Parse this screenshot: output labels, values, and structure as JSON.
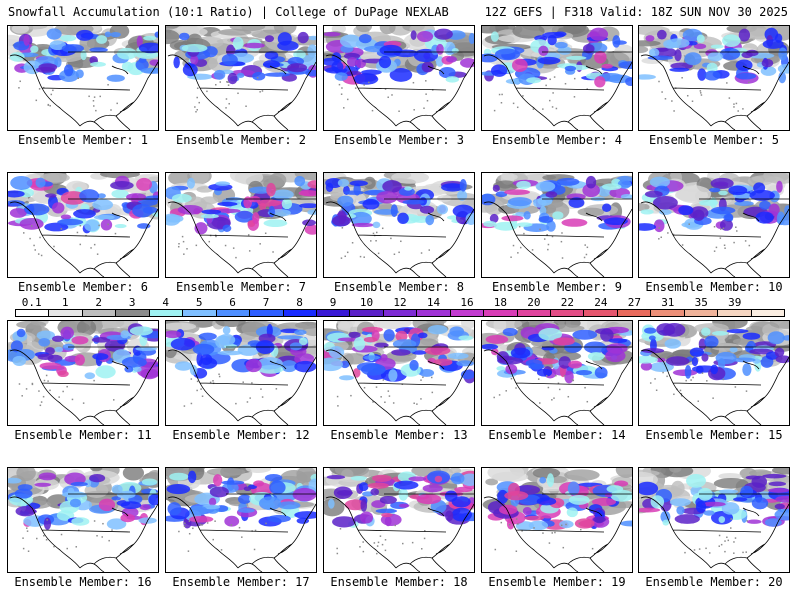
{
  "header": {
    "left_title": "Snowfall Accumulation (10:1 Ratio) | College of DuPage NEXLAB",
    "right_title": "12Z GEFS | F318 Valid: 18Z SUN NOV 30 2025"
  },
  "members": [
    {
      "label": "Ensemble Member: 1",
      "intensity": 0.55
    },
    {
      "label": "Ensemble Member: 2",
      "intensity": 0.5
    },
    {
      "label": "Ensemble Member: 3",
      "intensity": 0.6
    },
    {
      "label": "Ensemble Member: 4",
      "intensity": 0.65
    },
    {
      "label": "Ensemble Member: 5",
      "intensity": 0.55
    },
    {
      "label": "Ensemble Member: 6",
      "intensity": 0.65
    },
    {
      "label": "Ensemble Member: 7",
      "intensity": 0.7
    },
    {
      "label": "Ensemble Member: 8",
      "intensity": 0.5
    },
    {
      "label": "Ensemble Member: 9",
      "intensity": 0.6
    },
    {
      "label": "Ensemble Member: 10",
      "intensity": 0.55
    },
    {
      "label": "Ensemble Member: 11",
      "intensity": 0.65
    },
    {
      "label": "Ensemble Member: 12",
      "intensity": 0.55
    },
    {
      "label": "Ensemble Member: 13",
      "intensity": 0.7
    },
    {
      "label": "Ensemble Member: 14",
      "intensity": 0.65
    },
    {
      "label": "Ensemble Member: 15",
      "intensity": 0.5
    },
    {
      "label": "Ensemble Member: 16",
      "intensity": 0.65
    },
    {
      "label": "Ensemble Member: 17",
      "intensity": 0.6
    },
    {
      "label": "Ensemble Member: 18",
      "intensity": 0.7
    },
    {
      "label": "Ensemble Member: 19",
      "intensity": 0.75
    },
    {
      "label": "Ensemble Member: 20",
      "intensity": 0.6
    }
  ],
  "legend": {
    "labels": [
      "0.1",
      "1",
      "2",
      "3",
      "4",
      "5",
      "6",
      "7",
      "8",
      "9",
      "10",
      "12",
      "14",
      "16",
      "18",
      "20",
      "22",
      "24",
      "27",
      "31",
      "35",
      "39"
    ],
    "colors": [
      "#ffffff",
      "#e6e6e6",
      "#bdbdbd",
      "#8c8c8c",
      "#9ff2f2",
      "#7fbfff",
      "#4f8fff",
      "#2f5fff",
      "#1a2cff",
      "#3a1ad6",
      "#5b21c8",
      "#7e2bd4",
      "#a033d6",
      "#c23bd0",
      "#d83cb6",
      "#e0449e",
      "#e34d86",
      "#e6566e",
      "#e96a5c",
      "#ec8f78",
      "#f0b39a",
      "#f6d6c2",
      "#fbeee2"
    ],
    "caption_none": ""
  }
}
